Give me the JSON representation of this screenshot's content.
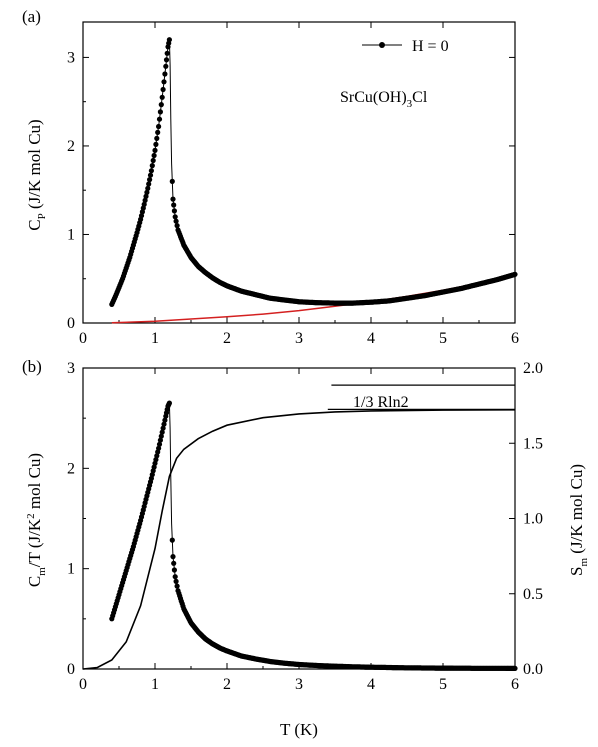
{
  "chart_data": [
    {
      "type": "scatter",
      "panel_label": "(a)",
      "xlabel": "",
      "ylabel": "C_P (J/K mol Cu)",
      "xlim": [
        0,
        6
      ],
      "ylim": [
        0,
        3.4
      ],
      "x_ticks": [
        "0",
        "1",
        "2",
        "3",
        "4",
        "5",
        "6"
      ],
      "y_ticks": [
        "0",
        "1",
        "2",
        "3"
      ],
      "legend": {
        "label": "H = 0",
        "placement": "top-right"
      },
      "annotation": "SrCu(OH)3Cl",
      "colors": {
        "data": "#000000",
        "fit": "#d42020"
      },
      "series": [
        {
          "name": "H = 0",
          "points": [
            [
              0.4,
              0.21
            ],
            [
              0.45,
              0.3
            ],
            [
              0.5,
              0.4
            ],
            [
              0.55,
              0.5
            ],
            [
              0.6,
              0.62
            ],
            [
              0.65,
              0.74
            ],
            [
              0.7,
              0.88
            ],
            [
              0.75,
              1.02
            ],
            [
              0.8,
              1.17
            ],
            [
              0.85,
              1.34
            ],
            [
              0.9,
              1.52
            ],
            [
              0.95,
              1.72
            ],
            [
              1.0,
              1.95
            ],
            [
              1.05,
              2.22
            ],
            [
              1.1,
              2.55
            ],
            [
              1.15,
              2.9
            ],
            [
              1.18,
              3.12
            ],
            [
              1.2,
              3.2
            ],
            [
              1.21,
              2.92
            ],
            [
              1.22,
              2.3
            ],
            [
              1.23,
              1.8
            ],
            [
              1.25,
              1.4
            ],
            [
              1.28,
              1.2
            ],
            [
              1.32,
              1.05
            ],
            [
              1.4,
              0.88
            ],
            [
              1.5,
              0.74
            ],
            [
              1.6,
              0.64
            ],
            [
              1.7,
              0.57
            ],
            [
              1.8,
              0.51
            ],
            [
              1.9,
              0.46
            ],
            [
              2.0,
              0.42
            ],
            [
              2.2,
              0.36
            ],
            [
              2.4,
              0.32
            ],
            [
              2.6,
              0.28
            ],
            [
              2.8,
              0.26
            ],
            [
              3.0,
              0.24
            ],
            [
              3.25,
              0.23
            ],
            [
              3.5,
              0.225
            ],
            [
              3.75,
              0.225
            ],
            [
              4.0,
              0.235
            ],
            [
              4.25,
              0.25
            ],
            [
              4.5,
              0.28
            ],
            [
              4.75,
              0.31
            ],
            [
              5.0,
              0.35
            ],
            [
              5.25,
              0.39
            ],
            [
              5.5,
              0.44
            ],
            [
              5.75,
              0.49
            ],
            [
              6.0,
              0.55
            ]
          ]
        },
        {
          "name": "",
          "style": "line",
          "points": [
            [
              0.4,
              0.002
            ],
            [
              1.0,
              0.02
            ],
            [
              1.5,
              0.045
            ],
            [
              2.0,
              0.07
            ],
            [
              2.5,
              0.1
            ],
            [
              3.0,
              0.14
            ],
            [
              3.5,
              0.19
            ],
            [
              4.0,
              0.24
            ],
            [
              4.5,
              0.3
            ],
            [
              5.0,
              0.37
            ],
            [
              5.5,
              0.45
            ],
            [
              6.0,
              0.54
            ]
          ]
        }
      ]
    },
    {
      "type": "scatter",
      "panel_label": "(b)",
      "xlabel": "T (K)",
      "ylabel": "C_m/T (J/K^2 mol Cu)",
      "y2label": "S_m (J/K mol Cu)",
      "xlim": [
        0,
        6
      ],
      "ylim": [
        0,
        3
      ],
      "y2lim": [
        0,
        2.0
      ],
      "x_ticks": [
        "0",
        "1",
        "2",
        "3",
        "4",
        "5",
        "6"
      ],
      "y_ticks": [
        "0",
        "1",
        "2",
        "3"
      ],
      "y2_ticks": [
        "0.0",
        "0.5",
        "1.0",
        "1.5",
        "2.0"
      ],
      "reference_lines": [
        {
          "label": "",
          "y2": 1.886,
          "x_start": 3.45,
          "x_end": 6
        },
        {
          "label": "1/3 Rln2",
          "y2": 1.725,
          "x_start": 3.4,
          "x_end": 6
        }
      ],
      "series": [
        {
          "name": "",
          "axis": "left",
          "points": [
            [
              0.4,
              0.5
            ],
            [
              0.45,
              0.62
            ],
            [
              0.5,
              0.74
            ],
            [
              0.55,
              0.86
            ],
            [
              0.6,
              0.98
            ],
            [
              0.65,
              1.1
            ],
            [
              0.7,
              1.22
            ],
            [
              0.75,
              1.35
            ],
            [
              0.8,
              1.48
            ],
            [
              0.85,
              1.62
            ],
            [
              0.9,
              1.76
            ],
            [
              0.95,
              1.9
            ],
            [
              1.0,
              2.05
            ],
            [
              1.05,
              2.2
            ],
            [
              1.1,
              2.36
            ],
            [
              1.15,
              2.52
            ],
            [
              1.18,
              2.62
            ],
            [
              1.2,
              2.65
            ],
            [
              1.21,
              2.4
            ],
            [
              1.22,
              1.9
            ],
            [
              1.23,
              1.45
            ],
            [
              1.25,
              1.12
            ],
            [
              1.28,
              0.92
            ],
            [
              1.32,
              0.78
            ],
            [
              1.4,
              0.6
            ],
            [
              1.5,
              0.46
            ],
            [
              1.6,
              0.37
            ],
            [
              1.7,
              0.3
            ],
            [
              1.8,
              0.25
            ],
            [
              1.9,
              0.21
            ],
            [
              2.0,
              0.18
            ],
            [
              2.2,
              0.13
            ],
            [
              2.4,
              0.1
            ],
            [
              2.6,
              0.075
            ],
            [
              2.8,
              0.058
            ],
            [
              3.0,
              0.045
            ],
            [
              3.25,
              0.035
            ],
            [
              3.5,
              0.028
            ],
            [
              3.75,
              0.022
            ],
            [
              4.0,
              0.018
            ],
            [
              4.25,
              0.015
            ],
            [
              4.5,
              0.012
            ],
            [
              4.75,
              0.01
            ],
            [
              5.0,
              0.009
            ],
            [
              5.25,
              0.008
            ],
            [
              5.5,
              0.007
            ],
            [
              5.75,
              0.007
            ],
            [
              6.0,
              0.006
            ]
          ]
        },
        {
          "name": "",
          "axis": "right",
          "style": "line",
          "points": [
            [
              0.0,
              0.0
            ],
            [
              0.2,
              0.01
            ],
            [
              0.4,
              0.06
            ],
            [
              0.6,
              0.18
            ],
            [
              0.8,
              0.42
            ],
            [
              1.0,
              0.8
            ],
            [
              1.1,
              1.05
            ],
            [
              1.2,
              1.28
            ],
            [
              1.3,
              1.4
            ],
            [
              1.4,
              1.46
            ],
            [
              1.6,
              1.53
            ],
            [
              1.8,
              1.58
            ],
            [
              2.0,
              1.62
            ],
            [
              2.5,
              1.67
            ],
            [
              3.0,
              1.695
            ],
            [
              3.5,
              1.708
            ],
            [
              4.0,
              1.715
            ],
            [
              5.0,
              1.72
            ],
            [
              6.0,
              1.722
            ]
          ]
        }
      ]
    }
  ],
  "text": {
    "panel_a_label": "(a)",
    "panel_b_label": "(b)",
    "legend_label": "H = 0",
    "formula_main": "SrCu(OH)",
    "formula_sub": "3",
    "formula_tail": "Cl",
    "cp_main": "C",
    "cp_sub": "P",
    "cp_tail": " (J/K mol Cu)",
    "cm_main": "C",
    "cm_sub": "m",
    "cm_mid": "/T (J/K",
    "cm_sup": "2",
    "cm_tail": " mol Cu)",
    "sm_main": "S",
    "sm_sub": "m",
    "sm_tail": " (J/K mol Cu)",
    "xlabel": "T (K)",
    "rln_label": "1/3 Rln2"
  }
}
